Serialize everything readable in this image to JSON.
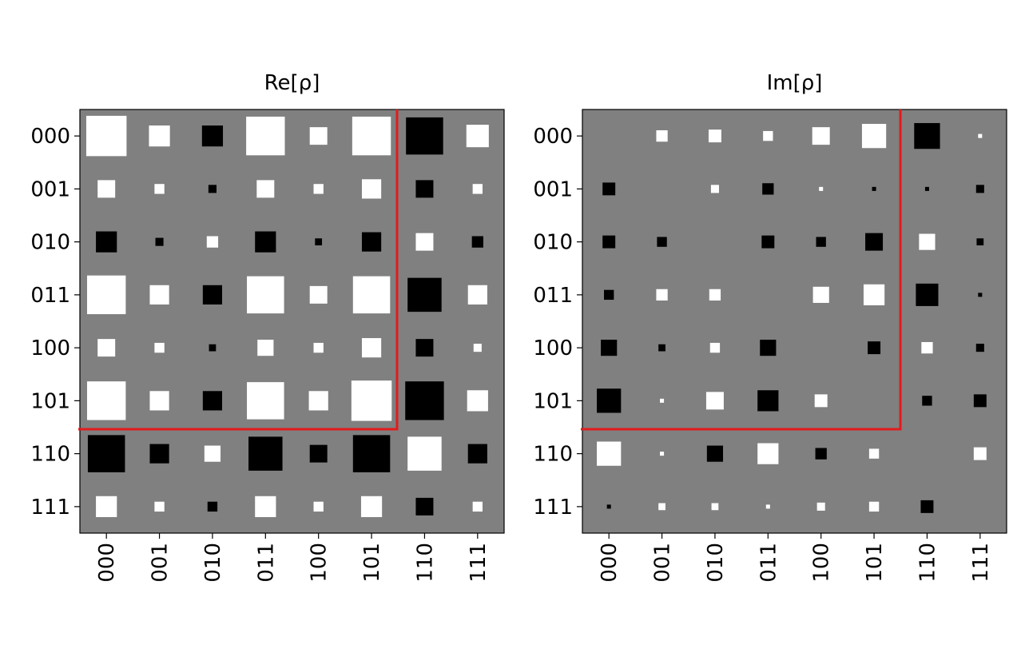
{
  "chart_data": [
    {
      "type": "hinton",
      "title": "Re[ρ]",
      "categories": [
        "000",
        "001",
        "010",
        "011",
        "100",
        "101",
        "110",
        "111"
      ],
      "background": "#808080",
      "positive_color": "#ffffff",
      "negative_color": "#000000",
      "values": [
        [
          1.0,
          0.27,
          -0.27,
          0.92,
          0.19,
          0.92,
          -0.85,
          0.31
        ],
        [
          0.19,
          0.06,
          -0.04,
          0.19,
          0.06,
          0.23,
          -0.19,
          0.06
        ],
        [
          -0.27,
          -0.04,
          0.08,
          -0.27,
          -0.03,
          -0.23,
          0.19,
          -0.08
        ],
        [
          0.92,
          0.23,
          -0.23,
          0.85,
          0.19,
          0.85,
          -0.71,
          0.23
        ],
        [
          0.19,
          0.06,
          -0.03,
          0.16,
          0.06,
          0.23,
          -0.19,
          0.04
        ],
        [
          0.92,
          0.23,
          -0.23,
          0.85,
          0.23,
          1.0,
          -0.92,
          0.27
        ],
        [
          -0.85,
          -0.23,
          0.16,
          -0.71,
          -0.19,
          -0.85,
          0.71,
          -0.23
        ],
        [
          0.27,
          0.06,
          -0.06,
          0.27,
          0.06,
          0.27,
          -0.19,
          0.06
        ]
      ]
    },
    {
      "type": "hinton",
      "title": "Im[ρ]",
      "categories": [
        "000",
        "001",
        "010",
        "011",
        "100",
        "101",
        "110",
        "111"
      ],
      "background": "#808080",
      "positive_color": "#ffffff",
      "negative_color": "#000000",
      "values": [
        [
          0,
          0.08,
          0.1,
          0.06,
          0.19,
          0.36,
          -0.41,
          0.01
        ],
        [
          -0.1,
          0,
          0.04,
          -0.08,
          0.01,
          -0.01,
          -0.01,
          -0.04
        ],
        [
          -0.1,
          -0.06,
          0,
          -0.1,
          -0.06,
          -0.19,
          0.16,
          -0.03
        ],
        [
          -0.06,
          0.08,
          0.08,
          0,
          0.16,
          0.27,
          -0.31,
          -0.01
        ],
        [
          -0.16,
          -0.03,
          0.06,
          -0.16,
          0,
          -0.1,
          0.08,
          -0.04
        ],
        [
          -0.36,
          0.01,
          0.19,
          -0.27,
          0.1,
          0,
          -0.06,
          -0.1
        ],
        [
          0.36,
          0.01,
          -0.16,
          0.27,
          -0.08,
          0.06,
          0,
          0.1
        ],
        [
          -0.01,
          0.03,
          0.03,
          0.01,
          0.04,
          0.06,
          -0.1,
          0
        ]
      ]
    }
  ]
}
